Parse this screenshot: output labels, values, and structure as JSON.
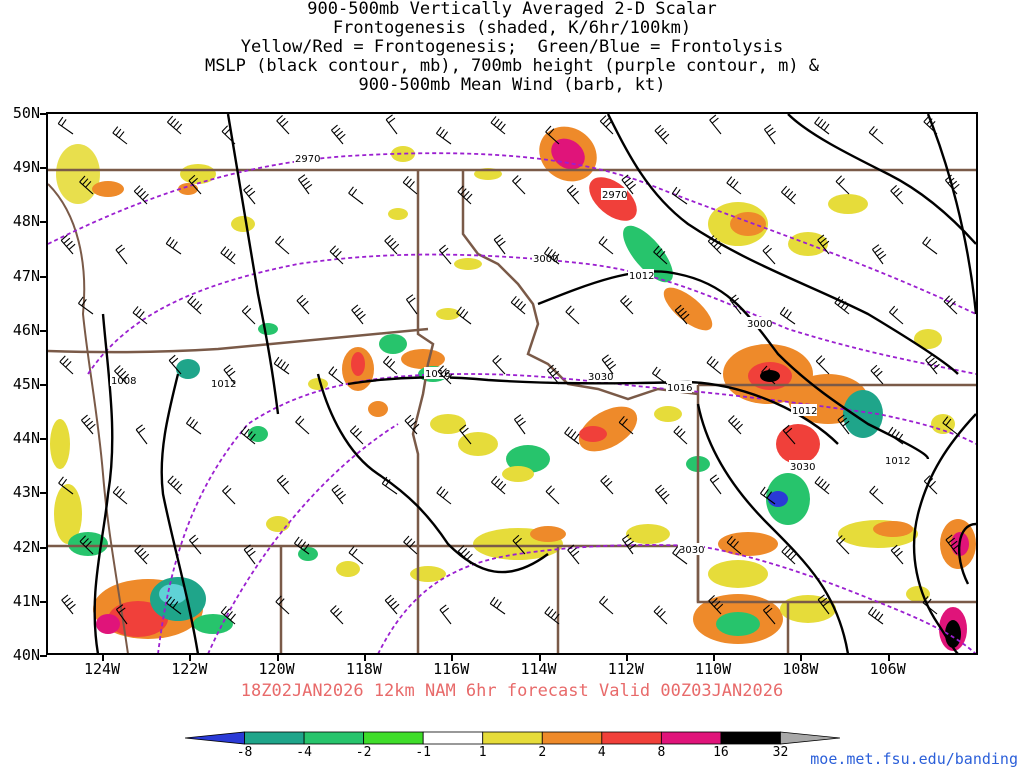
{
  "title": {
    "line1": "900-500mb Vertically Averaged 2-D Scalar",
    "line2": "Frontogenesis (shaded, K/6hr/100km)",
    "line3": "Yellow/Red = Frontogenesis;  Green/Blue = Frontolysis",
    "line4": "MSLP (black contour, mb), 700mb height (purple contour, m) &",
    "line5": "900-500mb Mean Wind (barb, kt)"
  },
  "y_axis": {
    "labels": [
      "50N",
      "49N",
      "48N",
      "47N",
      "46N",
      "45N",
      "44N",
      "43N",
      "42N",
      "41N",
      "40N"
    ]
  },
  "x_axis": {
    "labels": [
      "124W",
      "122W",
      "120W",
      "118W",
      "116W",
      "114W",
      "112W",
      "110W",
      "108W",
      "106W"
    ]
  },
  "valid_line": "18Z02JAN2026 12km NAM 6hr forecast Valid 00Z03JAN2026",
  "colorbar": {
    "labels": [
      "-8",
      "-4",
      "-2",
      "-1",
      "1",
      "2",
      "4",
      "8",
      "16",
      "32"
    ],
    "colors": [
      "#2a3ad6",
      "#1fa58a",
      "#27c46c",
      "#3fdd2a",
      "#ffffff",
      "#e6dc3a",
      "#ee8a2a",
      "#f0403a",
      "#e0147a",
      "#000000",
      "#a8a8a8"
    ]
  },
  "map": {
    "colors": {
      "pressure_contour": "#000000",
      "height_contour": "#9b1fd0",
      "borders": "#7a5a48",
      "barbs": "#000000"
    },
    "pressure_labels": [
      "1008",
      "1012",
      "1016",
      "1012",
      "1016",
      "1012",
      "1012"
    ],
    "height_labels": [
      "2970",
      "2970",
      "3000",
      "3000",
      "3030",
      "3030",
      "3030"
    ]
  },
  "credit": "moe.met.fsu.edu/banding"
}
